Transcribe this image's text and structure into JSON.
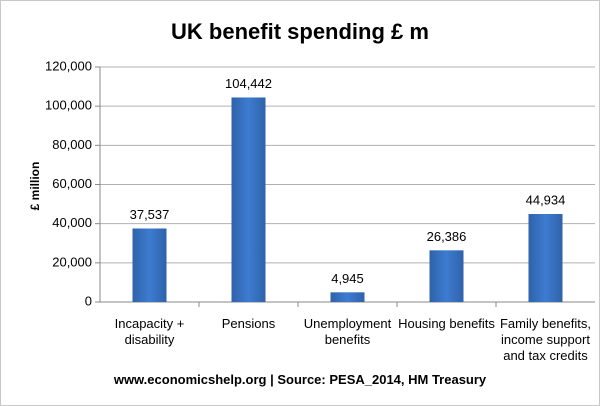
{
  "chart_data": {
    "type": "bar",
    "title": "UK benefit spending £ m",
    "y_label": "£ million",
    "source": "www.economicshelp.org | Source: PESA_2014, HM Treasury",
    "categories": [
      "Incapacity + disability",
      "Pensions",
      "Unemployment benefits",
      "Housing benefits",
      "Family benefits, income support and tax credits"
    ],
    "values": [
      37537,
      104442,
      4945,
      26386,
      44934
    ],
    "value_labels": [
      "37,537",
      "104,442",
      "4,945",
      "26,386",
      "44,934"
    ],
    "color": "#3d7cd0",
    "ylim": [
      0,
      120000
    ],
    "yticks": [
      0,
      {
        "value": 20000,
        "label": "20,000"
      },
      {
        "value": 40000,
        "label": "40,000"
      },
      {
        "value": 60000,
        "label": "60,000"
      },
      {
        "value": 80000,
        "label": "80,000"
      },
      {
        "value": 100000,
        "label": "100,000"
      },
      {
        "value": 120000,
        "label": "120,000"
      }
    ],
    "grid": true
  }
}
